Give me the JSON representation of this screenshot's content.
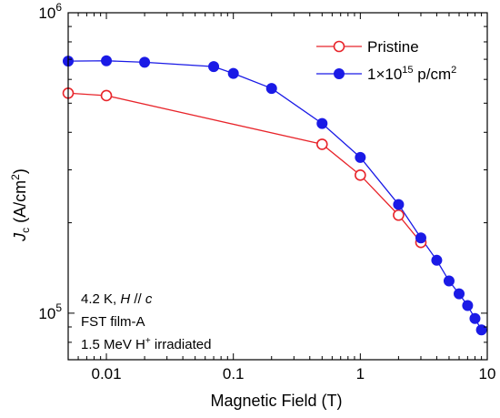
{
  "chart_data": {
    "type": "scatter",
    "xscale": "log",
    "yscale": "log",
    "xlim": [
      0.005,
      10
    ],
    "ylim": [
      70000,
      1000000
    ],
    "xlabel": "Magnetic Field (T)",
    "ylabel": {
      "main": "J",
      "sub": "c",
      "units_pre": " (A/cm",
      "units_sup": "2",
      "units_post": ")"
    },
    "x_ticks": [
      {
        "value": 0.01,
        "label": "0.01"
      },
      {
        "value": 0.1,
        "label": "0.1"
      },
      {
        "value": 1,
        "label": "1"
      },
      {
        "value": 10,
        "label": "10"
      }
    ],
    "y_ticks": [
      {
        "value": 100000,
        "base": "10",
        "exp": "5"
      },
      {
        "value": 1000000,
        "base": "10",
        "exp": "6"
      }
    ],
    "grid": false,
    "legend_position": "top-right",
    "series": [
      {
        "name": "Pristine",
        "color": "#e8252b",
        "marker": "open-circle",
        "x": [
          0.005,
          0.01,
          0.5,
          1,
          2,
          3
        ],
        "y": [
          540000,
          530000,
          365000,
          288000,
          212000,
          172000
        ]
      },
      {
        "name": "1×10¹⁵ p/cm²",
        "name_parts": {
          "pre": "1×10",
          "sup1": "15",
          "mid": " p/cm",
          "sup2": "2"
        },
        "color": "#1a1ae6",
        "marker": "filled-circle",
        "x": [
          0.005,
          0.01,
          0.02,
          0.07,
          0.1,
          0.2,
          0.5,
          1,
          2,
          3,
          4,
          5,
          6,
          7,
          8,
          9
        ],
        "y": [
          690000,
          692000,
          684000,
          662000,
          628000,
          560000,
          428000,
          330000,
          230000,
          178000,
          150000,
          128000,
          116000,
          106000,
          96000,
          88000
        ]
      }
    ],
    "annotations": {
      "line1_pre": "4.2 K, ",
      "line1_h": "H",
      "line1_mid": " // ",
      "line1_c": "c",
      "line2": "FST film-A",
      "line3_pre": "1.5 MeV H",
      "line3_sup": "+",
      "line3_post": " irradiated"
    }
  }
}
